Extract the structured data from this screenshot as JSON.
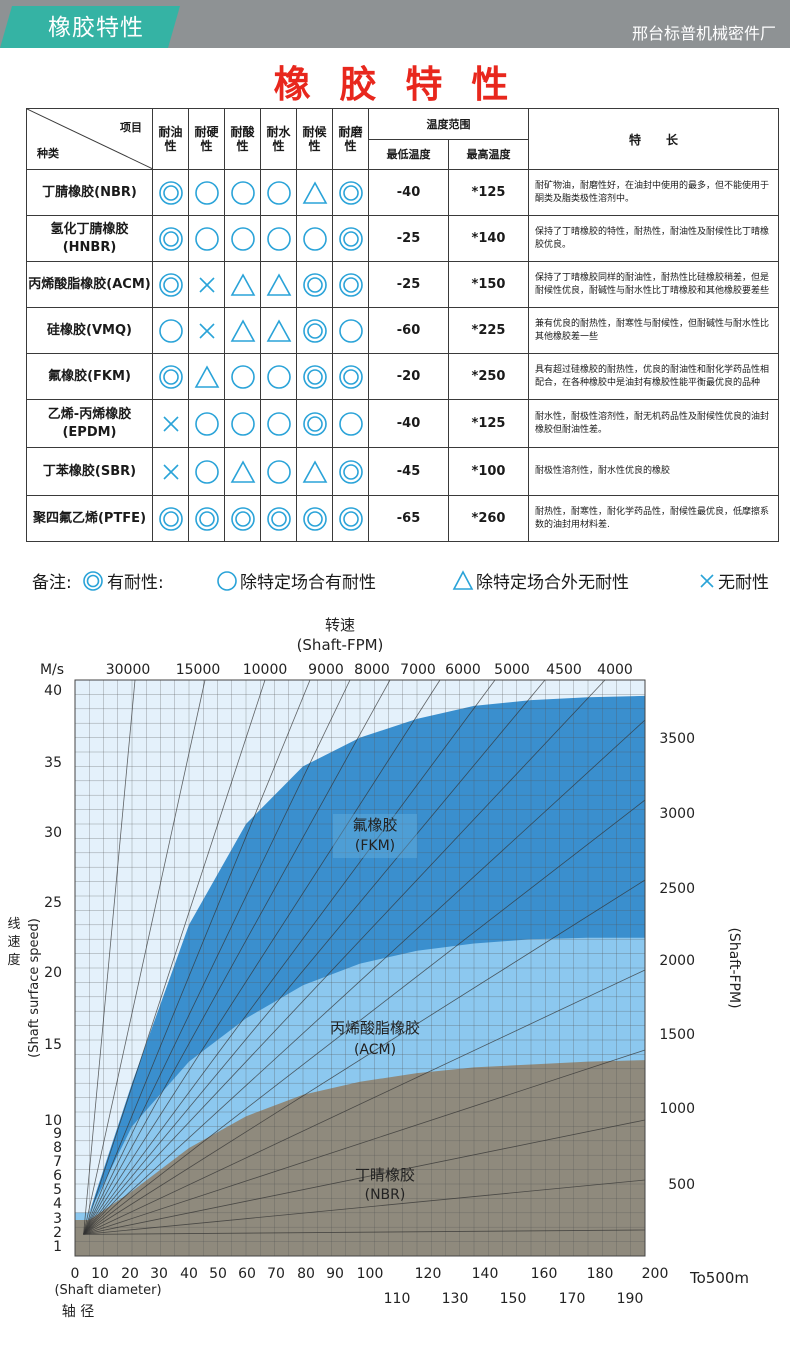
{
  "header": {
    "tag": "橡胶特性",
    "company": "邢台标普机械密件厂"
  },
  "title": "橡 胶 特 性",
  "table": {
    "corner_top": "项目",
    "corner_bottom": "种类",
    "prop_headers": [
      "耐油性",
      "耐硬性",
      "耐酸性",
      "耐水性",
      "耐候性",
      "耐磨性"
    ],
    "temp_header": "温度范围",
    "min_header": "最低温度",
    "max_header": "最高温度",
    "feature_header": "特      长",
    "rows": [
      {
        "name": "丁腈橡胶(NBR)",
        "sym": [
          "dbl",
          "circ",
          "circ",
          "circ",
          "tri",
          "dbl"
        ],
        "min": "-40",
        "max": "*125",
        "feature": "耐矿物油，耐磨性好，在油封中使用的最多，但不能使用于酮类及脂类极性溶剂中。"
      },
      {
        "name": "氢化丁腈橡胶(HNBR)",
        "sym": [
          "dbl",
          "circ",
          "circ",
          "circ",
          "circ",
          "dbl"
        ],
        "min": "-25",
        "max": "*140",
        "feature": "保持了丁晴橡胶的特性，耐热性，耐油性及耐候性比丁晴橡胶优良。"
      },
      {
        "name": "丙烯酸脂橡胶(ACM)",
        "sym": [
          "dbl",
          "x",
          "tri",
          "tri",
          "dbl",
          "dbl"
        ],
        "min": "-25",
        "max": "*150",
        "feature": "保持了丁晴橡胶同样的耐油性，耐热性比硅橡胶稍差，但是耐候性优良，耐碱性与耐水性比丁晴橡胶和其他橡胶要差些"
      },
      {
        "name": "硅橡胶(VMQ)",
        "sym": [
          "circ",
          "x",
          "tri",
          "tri",
          "dbl",
          "circ"
        ],
        "min": "-60",
        "max": "*225",
        "feature": "兼有优良的耐热性，耐寒性与耐候性，但耐碱性与耐水性比其他橡胶差一些"
      },
      {
        "name": "氟橡胶(FKM)",
        "sym": [
          "dbl",
          "tri",
          "circ",
          "circ",
          "dbl",
          "dbl"
        ],
        "min": "-20",
        "max": "*250",
        "feature": "具有超过硅橡胶的耐热性，优良的耐油性和耐化学药品性相配合，在各种橡胶中是油封有橡胶性能平衡最优良的品种"
      },
      {
        "name": "乙烯-丙烯橡胶(EPDM)",
        "sym": [
          "x",
          "circ",
          "circ",
          "circ",
          "dbl",
          "circ"
        ],
        "min": "-40",
        "max": "*125",
        "feature": "耐水性，耐极性溶剂性，耐无机药品性及耐候性优良的油封橡胶但耐油性差。"
      },
      {
        "name": "丁苯橡胶(SBR)",
        "sym": [
          "x",
          "circ",
          "tri",
          "circ",
          "tri",
          "dbl"
        ],
        "min": "-45",
        "max": "*100",
        "feature": "耐极性溶剂性，耐水性优良的橡胶"
      },
      {
        "name": "聚四氟乙烯(PTFE)",
        "sym": [
          "dbl",
          "dbl",
          "dbl",
          "dbl",
          "dbl",
          "dbl"
        ],
        "min": "-65",
        "max": "*260",
        "feature": "耐热性，耐寒性，耐化学药品性，耐候性最优良，低摩擦系数的油封用材料差."
      }
    ]
  },
  "legend": {
    "prefix": "备注:",
    "items": [
      "有耐性:",
      "除特定场合有耐性",
      "除特定场合外无耐性",
      "无耐性"
    ]
  },
  "chart_data": {
    "type": "area",
    "top_title": "转速",
    "top_subtitle": "(Shaft-FPM)",
    "top_ticks": [
      "30000",
      "15000",
      "10000",
      "9000",
      "8000",
      "7000",
      "6000",
      "5000",
      "4500",
      "4000"
    ],
    "y_unit": "M/s",
    "y_ticks": [
      "40",
      "35",
      "30",
      "25",
      "20",
      "15",
      "10",
      "9",
      "8",
      "7",
      "6",
      "5",
      "4",
      "3",
      "2",
      "1"
    ],
    "y_label_cn": "线速度",
    "y_label_en": "(Shaft surface speed)",
    "right_label": "(Shaft-FPM)",
    "right_ticks": [
      "3500",
      "3000",
      "2500",
      "2000",
      "1500",
      "1000",
      "500"
    ],
    "x_ticks_row1": [
      "0",
      "10",
      "20",
      "30",
      "40",
      "50",
      "60",
      "70",
      "80",
      "90",
      "100",
      "120",
      "140",
      "160",
      "180",
      "200"
    ],
    "x_ticks_row2": [
      "110",
      "130",
      "150",
      "170",
      "190"
    ],
    "x_unit_note": "To500m",
    "x_label_en": "(Shaft diameter)",
    "x_label_cn": "轴 径",
    "ylim": [
      0,
      40
    ],
    "xlim": [
      0,
      200
    ],
    "regions": [
      {
        "name": "氟橡胶",
        "code": "(FKM)",
        "color": "#3a8fce",
        "x": [
          5,
          20,
          40,
          60,
          80,
          100,
          120,
          140,
          160,
          180,
          200
        ],
        "y": [
          3,
          12,
          23,
          30,
          34,
          36,
          37.3,
          38.2,
          38.6,
          38.8,
          38.9
        ]
      },
      {
        "name": "丙烯酸脂橡胶",
        "code": "(ACM)",
        "color": "#8cc8ef",
        "x": [
          5,
          20,
          40,
          60,
          80,
          100,
          120,
          140,
          160,
          180,
          200
        ],
        "y": [
          3,
          9,
          13.5,
          16.5,
          18.8,
          20.3,
          21.2,
          21.7,
          22,
          22.1,
          22.1
        ]
      },
      {
        "name": "丁睛橡胶",
        "code": "(NBR)",
        "color": "#8f8a7d",
        "x": [
          5,
          20,
          40,
          60,
          80,
          100,
          120,
          140,
          160,
          180,
          200
        ],
        "y": [
          2.5,
          4.5,
          7.5,
          9.7,
          11.2,
          12.1,
          12.7,
          13.1,
          13.3,
          13.5,
          13.6
        ]
      }
    ]
  }
}
